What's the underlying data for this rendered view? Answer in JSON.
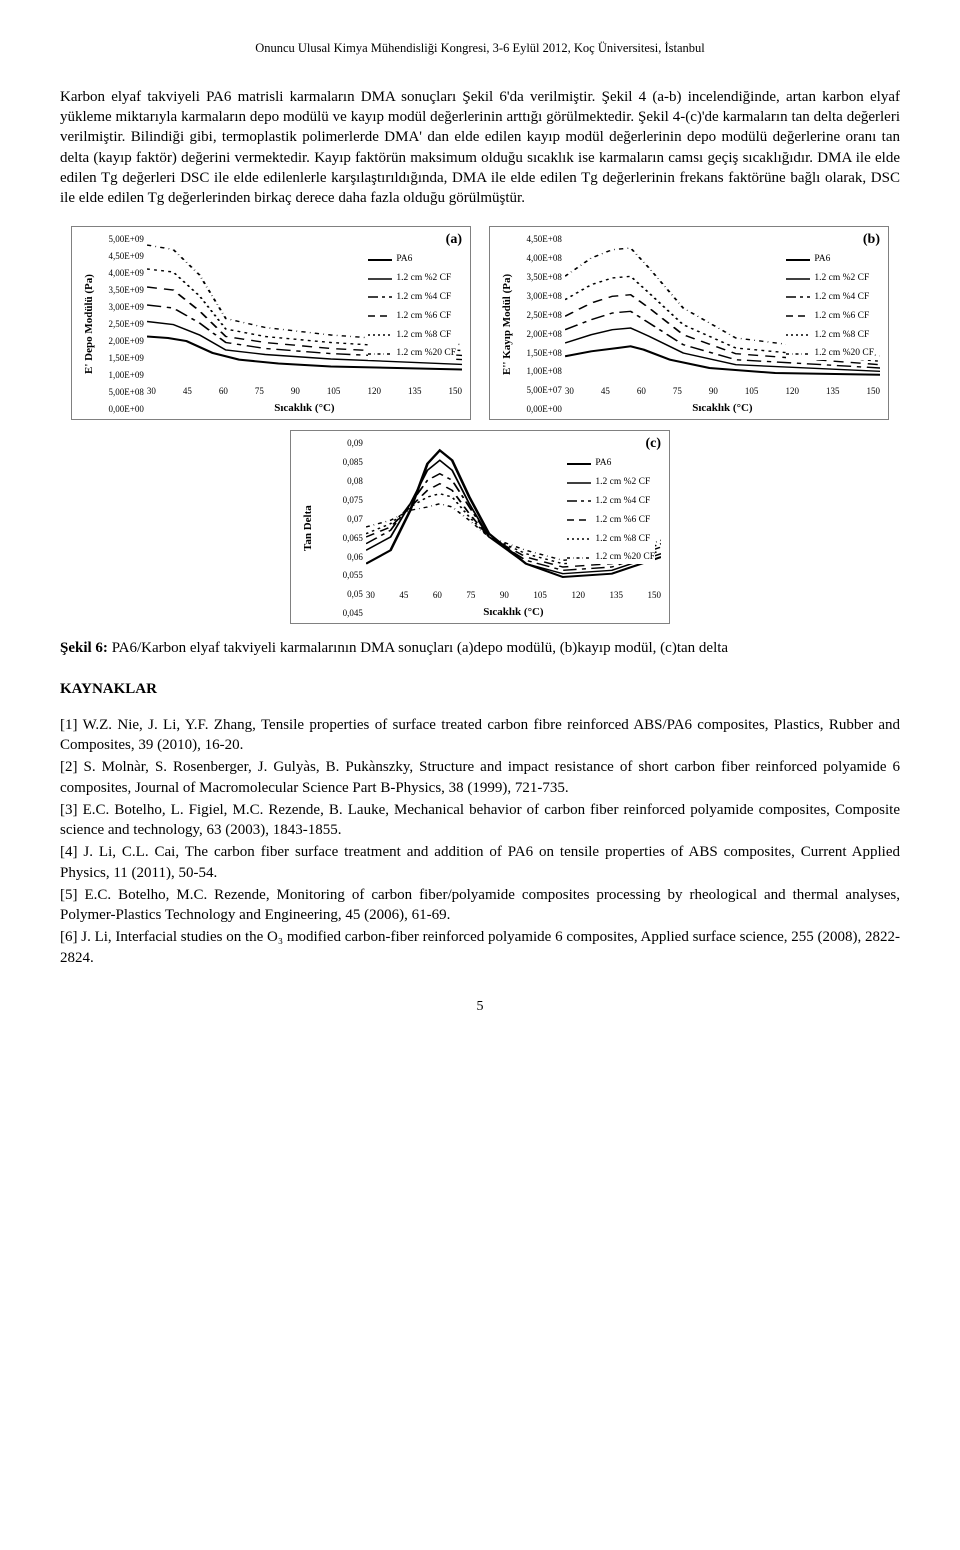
{
  "header": "Onuncu Ulusal Kimya Mühendisliği Kongresi, 3-6 Eylül 2012, Koç Üniversitesi, İstanbul",
  "para1": "Karbon elyaf takviyeli PA6 matrisli karmaların DMA sonuçları Şekil 6'da verilmiştir. Şekil 4 (a-b) incelendiğinde, artan karbon elyaf yükleme miktarıyla karmaların depo modülü ve kayıp modül değerlerinin arttığı görülmektedir. Şekil 4-(c)'de karmaların tan delta değerleri verilmiştir. Bilindiği gibi, termoplastik polimerlerde DMA' dan elde edilen kayıp modül değerlerinin depo modülü değerlerine oranı tan delta (kayıp faktör) değerini vermektedir. Kayıp faktörün maksimum olduğu sıcaklık ise karmaların camsı geçiş sıcaklığıdır. DMA ile elde edilen Tg değerleri DSC ile elde edilenlerle karşılaştırıldığında, DMA ile elde edilen Tg değerlerinin frekans faktörüne bağlı olarak, DSC ile elde edilen Tg değerlerinden birkaç derece daha fazla olduğu görülmüştür.",
  "chart_common": {
    "xlabel": "Sıcaklık (°C)",
    "xticks": [
      "30",
      "45",
      "60",
      "75",
      "90",
      "105",
      "120",
      "135",
      "150"
    ],
    "line_color": "#000000",
    "legend_labels": [
      "PA6",
      "1.2 cm %2 CF",
      "1.2 cm %4 CF",
      "1.2 cm %6 CF",
      "1.2 cm %8 CF",
      "1.2 cm %20 CF"
    ],
    "legend_dash": [
      "0",
      "0",
      "10 4 3 4",
      "7 5",
      "2 3",
      "3 3 0.5 3"
    ]
  },
  "chart_a": {
    "letter": "(a)",
    "ylabel": "E' Depo Modülü (Pa)",
    "yticks": [
      "0,00E+00",
      "5,00E+08",
      "1,00E+09",
      "1,50E+09",
      "2,00E+09",
      "2,50E+09",
      "3,00E+09",
      "3,50E+09",
      "4,00E+09",
      "4,50E+09",
      "5,00E+09"
    ],
    "series": [
      {
        "name": "PA6",
        "dash": "0",
        "pts": [
          [
            30,
            1.55
          ],
          [
            38,
            1.5
          ],
          [
            45,
            1.4
          ],
          [
            55,
            1.0
          ],
          [
            65,
            0.78
          ],
          [
            80,
            0.65
          ],
          [
            100,
            0.55
          ],
          [
            150,
            0.45
          ]
        ]
      },
      {
        "name": "2CF",
        "dash": "0",
        "pts": [
          [
            30,
            2.05
          ],
          [
            40,
            1.95
          ],
          [
            50,
            1.6
          ],
          [
            60,
            1.1
          ],
          [
            75,
            0.95
          ],
          [
            100,
            0.8
          ],
          [
            150,
            0.62
          ]
        ]
      },
      {
        "name": "4CF",
        "dash": "10 4 3 4",
        "pts": [
          [
            30,
            2.6
          ],
          [
            40,
            2.5
          ],
          [
            50,
            2.0
          ],
          [
            60,
            1.35
          ],
          [
            75,
            1.15
          ],
          [
            100,
            0.98
          ],
          [
            150,
            0.78
          ]
        ]
      },
      {
        "name": "6CF",
        "dash": "7 5",
        "pts": [
          [
            30,
            3.2
          ],
          [
            40,
            3.1
          ],
          [
            50,
            2.4
          ],
          [
            60,
            1.55
          ],
          [
            75,
            1.35
          ],
          [
            100,
            1.15
          ],
          [
            150,
            0.92
          ]
        ]
      },
      {
        "name": "8CF",
        "dash": "2 3",
        "pts": [
          [
            30,
            3.8
          ],
          [
            40,
            3.7
          ],
          [
            50,
            2.9
          ],
          [
            60,
            1.8
          ],
          [
            75,
            1.55
          ],
          [
            100,
            1.35
          ],
          [
            150,
            1.08
          ]
        ]
      },
      {
        "name": "20CF",
        "dash": "3 3 0.5 3",
        "pts": [
          [
            30,
            4.6
          ],
          [
            40,
            4.45
          ],
          [
            50,
            3.6
          ],
          [
            60,
            2.15
          ],
          [
            75,
            1.85
          ],
          [
            100,
            1.6
          ],
          [
            150,
            1.28
          ]
        ]
      }
    ],
    "ylim": [
      0,
      5.0
    ]
  },
  "chart_b": {
    "letter": "(b)",
    "ylabel": "E'' Kayıp Modül (Pa)",
    "yticks": [
      "0,00E+00",
      "5,00E+07",
      "1,00E+08",
      "1,50E+08",
      "2,00E+08",
      "2,50E+08",
      "3,00E+08",
      "3,50E+08",
      "4,00E+08",
      "4,50E+08"
    ],
    "series": [
      {
        "name": "PA6",
        "dash": "0",
        "pts": [
          [
            30,
            0.8
          ],
          [
            40,
            0.95
          ],
          [
            50,
            1.05
          ],
          [
            55,
            1.1
          ],
          [
            60,
            1.0
          ],
          [
            70,
            0.7
          ],
          [
            85,
            0.45
          ],
          [
            110,
            0.3
          ],
          [
            150,
            0.25
          ]
        ]
      },
      {
        "name": "2CF",
        "dash": "0",
        "pts": [
          [
            30,
            1.2
          ],
          [
            40,
            1.45
          ],
          [
            48,
            1.6
          ],
          [
            55,
            1.65
          ],
          [
            62,
            1.4
          ],
          [
            75,
            0.9
          ],
          [
            95,
            0.55
          ],
          [
            150,
            0.35
          ]
        ]
      },
      {
        "name": "4CF",
        "dash": "10 4 3 4",
        "pts": [
          [
            30,
            1.6
          ],
          [
            40,
            1.9
          ],
          [
            48,
            2.1
          ],
          [
            55,
            2.15
          ],
          [
            62,
            1.8
          ],
          [
            75,
            1.15
          ],
          [
            95,
            0.7
          ],
          [
            150,
            0.45
          ]
        ]
      },
      {
        "name": "6CF",
        "dash": "7 5",
        "pts": [
          [
            30,
            2.0
          ],
          [
            40,
            2.4
          ],
          [
            48,
            2.6
          ],
          [
            55,
            2.65
          ],
          [
            62,
            2.25
          ],
          [
            75,
            1.45
          ],
          [
            95,
            0.88
          ],
          [
            150,
            0.55
          ]
        ]
      },
      {
        "name": "8CF",
        "dash": "2 3",
        "pts": [
          [
            30,
            2.5
          ],
          [
            40,
            2.95
          ],
          [
            48,
            3.15
          ],
          [
            55,
            3.2
          ],
          [
            62,
            2.7
          ],
          [
            75,
            1.75
          ],
          [
            95,
            1.05
          ],
          [
            150,
            0.65
          ]
        ]
      },
      {
        "name": "20CF",
        "dash": "3 3 0.5 3",
        "pts": [
          [
            30,
            3.2
          ],
          [
            40,
            3.75
          ],
          [
            48,
            4.0
          ],
          [
            55,
            4.05
          ],
          [
            62,
            3.45
          ],
          [
            75,
            2.25
          ],
          [
            95,
            1.35
          ],
          [
            150,
            0.82
          ]
        ]
      }
    ],
    "ylim": [
      0,
      4.5
    ]
  },
  "chart_c": {
    "letter": "(c)",
    "ylabel": "Tan Delta",
    "yticks": [
      "0,045",
      "0,05",
      "0,055",
      "0,06",
      "0,065",
      "0,07",
      "0,075",
      "0,08",
      "0,085",
      "0,09"
    ],
    "series": [
      {
        "name": "PA6",
        "dash": "0",
        "pts": [
          [
            30,
            0.052
          ],
          [
            40,
            0.056
          ],
          [
            48,
            0.068
          ],
          [
            55,
            0.082
          ],
          [
            60,
            0.086
          ],
          [
            65,
            0.083
          ],
          [
            72,
            0.072
          ],
          [
            80,
            0.061
          ],
          [
            95,
            0.052
          ],
          [
            110,
            0.048
          ],
          [
            130,
            0.049
          ],
          [
            150,
            0.054
          ]
        ]
      },
      {
        "name": "2CF",
        "dash": "0",
        "pts": [
          [
            30,
            0.056
          ],
          [
            40,
            0.06
          ],
          [
            48,
            0.07
          ],
          [
            55,
            0.08
          ],
          [
            60,
            0.083
          ],
          [
            65,
            0.08
          ],
          [
            72,
            0.07
          ],
          [
            80,
            0.06
          ],
          [
            95,
            0.052
          ],
          [
            110,
            0.049
          ],
          [
            130,
            0.05
          ],
          [
            150,
            0.055
          ]
        ]
      },
      {
        "name": "4CF",
        "dash": "10 4 3 4",
        "pts": [
          [
            30,
            0.058
          ],
          [
            40,
            0.062
          ],
          [
            48,
            0.07
          ],
          [
            55,
            0.077
          ],
          [
            60,
            0.079
          ],
          [
            65,
            0.077
          ],
          [
            72,
            0.069
          ],
          [
            80,
            0.06
          ],
          [
            95,
            0.053
          ],
          [
            110,
            0.05
          ],
          [
            130,
            0.051
          ],
          [
            150,
            0.056
          ]
        ]
      },
      {
        "name": "6CF",
        "dash": "7 5",
        "pts": [
          [
            30,
            0.06
          ],
          [
            40,
            0.063
          ],
          [
            48,
            0.069
          ],
          [
            55,
            0.074
          ],
          [
            60,
            0.076
          ],
          [
            65,
            0.074
          ],
          [
            72,
            0.067
          ],
          [
            80,
            0.06
          ],
          [
            95,
            0.054
          ],
          [
            110,
            0.051
          ],
          [
            130,
            0.052
          ],
          [
            150,
            0.057
          ]
        ]
      },
      {
        "name": "8CF",
        "dash": "2 3",
        "pts": [
          [
            30,
            0.061
          ],
          [
            40,
            0.064
          ],
          [
            48,
            0.069
          ],
          [
            55,
            0.072
          ],
          [
            60,
            0.073
          ],
          [
            65,
            0.072
          ],
          [
            72,
            0.066
          ],
          [
            80,
            0.06
          ],
          [
            95,
            0.055
          ],
          [
            110,
            0.052
          ],
          [
            130,
            0.053
          ],
          [
            150,
            0.058
          ]
        ]
      },
      {
        "name": "20CF",
        "dash": "3 3 0.5 3",
        "pts": [
          [
            30,
            0.063
          ],
          [
            40,
            0.065
          ],
          [
            48,
            0.068
          ],
          [
            55,
            0.069
          ],
          [
            60,
            0.07
          ],
          [
            65,
            0.069
          ],
          [
            72,
            0.065
          ],
          [
            80,
            0.06
          ],
          [
            95,
            0.056
          ],
          [
            110,
            0.053
          ],
          [
            130,
            0.054
          ],
          [
            150,
            0.059
          ]
        ]
      }
    ],
    "ylim": [
      0.045,
      0.09
    ]
  },
  "fig_caption_lead": "Şekil 6:",
  "fig_caption_rest": " PA6/Karbon elyaf takviyeli karmalarının DMA sonuçları (a)depo modülü, (b)kayıp modül, (c)tan delta",
  "refs_head": "KAYNAKLAR",
  "refs": [
    "[1] W.Z. Nie, J. Li, Y.F. Zhang, Tensile properties of surface treated carbon fibre reinforced ABS/PA6 composites, Plastics, Rubber and Composites, 39 (2010), 16-20.",
    "[2] S. Molnàr, S. Rosenberger, J. Gulyàs, B. Pukànszky, Structure and impact resistance of short carbon fiber reinforced polyamide 6 composites, Journal of Macromolecular Science Part B-Physics, 38 (1999), 721-735.",
    "[3] E.C. Botelho, L. Figiel, M.C. Rezende, B. Lauke, Mechanical behavior of carbon fiber reinforced polyamide composites, Composite science and technology, 63 (2003), 1843-1855.",
    "[4] J. Li, C.L. Cai, The carbon fiber surface treatment and addition of PA6 on tensile properties of ABS composites, Current Applied Physics, 11 (2011), 50-54.",
    "[5] E.C. Botelho, M.C. Rezende, Monitoring of carbon fiber/polyamide composites processing by rheological and thermal analyses, Polymer-Plastics Technology and Engineering, 45 (2006), 61-69.",
    "[6] J. Li, Interfacial studies on the O₃ modified carbon-fiber reinforced polyamide 6 composites, Applied surface science, 255 (2008), 2822-2824."
  ],
  "page_num": "5"
}
